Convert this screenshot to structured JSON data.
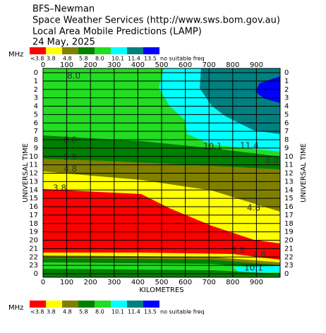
{
  "chart_data": {
    "type": "contour",
    "title": [
      "BFS–Newman",
      "Space Weather Services (http://www.sws.bom.gov.au)",
      "Local Area Mobile Predictions (LAMP)",
      "24 May, 2025"
    ],
    "legend_unit": "MHz",
    "bands": [
      {
        "label": "<3.8",
        "color": "#ff0000"
      },
      {
        "label": "3.8",
        "color": "#ffff00"
      },
      {
        "label": "4.8",
        "color": "#808000"
      },
      {
        "label": "5.8",
        "color": "#008000"
      },
      {
        "label": "8.0",
        "color": "#22dd22"
      },
      {
        "label": "10.1",
        "color": "#00ffff"
      },
      {
        "label": "11.4",
        "color": "#008080"
      },
      {
        "label": "13.5",
        "color": "#0000ff"
      },
      {
        "label": "no suitable freq",
        "color": "#ffffff"
      }
    ],
    "xlabel": "KILOMETRES",
    "ylabel": "UNIVERSAL TIME",
    "xlim": [
      0,
      1000
    ],
    "xticks": [
      0,
      100,
      200,
      300,
      400,
      500,
      600,
      700,
      800,
      900
    ],
    "ylim": [
      0,
      24
    ],
    "yticks": [
      0,
      1,
      2,
      3,
      4,
      5,
      6,
      7,
      8,
      9,
      10,
      11,
      12,
      13,
      14,
      15,
      16,
      17,
      18,
      19,
      20,
      21,
      22,
      23,
      {
        "value": 24,
        "label": "0"
      }
    ],
    "grid": true,
    "annotations": [
      "8.0",
      "8.0",
      "5.8",
      "4.8",
      "3.8",
      "10.1",
      "11.4",
      "8.0",
      "4.8",
      "3.8",
      "4.8",
      "10.1"
    ]
  }
}
